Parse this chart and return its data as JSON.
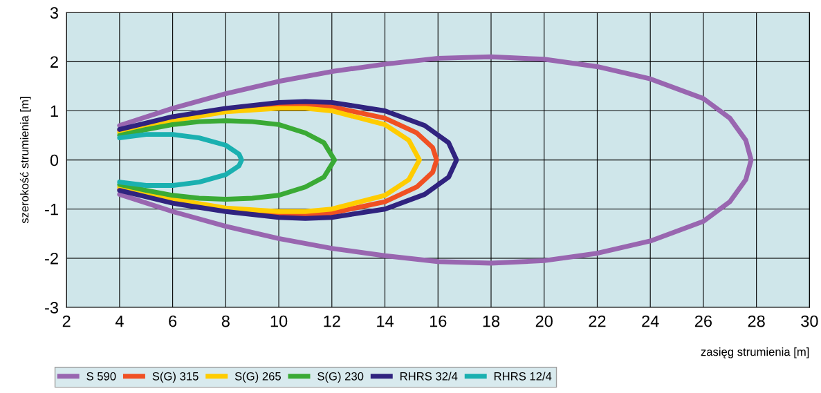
{
  "chart_data": {
    "type": "line",
    "xlabel": "zasięg strumienia [m]",
    "ylabel": "szerokość strumienia [m]",
    "xlim": [
      2,
      30
    ],
    "xticks": [
      2,
      4,
      6,
      8,
      10,
      12,
      14,
      16,
      18,
      20,
      22,
      24,
      26,
      28,
      30
    ],
    "ylim": [
      -3,
      3
    ],
    "yticks": [
      -3,
      -2,
      -1,
      0,
      1,
      2,
      3
    ],
    "grid": true,
    "legend": "bottom",
    "marker": "none",
    "line_style": "solid",
    "series": [
      {
        "name": "S 590",
        "color": "#9966b0",
        "x": [
          4,
          6,
          8,
          10,
          12,
          14,
          16,
          18,
          20,
          22,
          24,
          26,
          27,
          27.6,
          27.8,
          27.6,
          27,
          26,
          24,
          22,
          20,
          18,
          16,
          14,
          12,
          10,
          8,
          6,
          4
        ],
        "values": [
          0.7,
          1.05,
          1.35,
          1.6,
          1.8,
          1.95,
          2.07,
          2.1,
          2.05,
          1.9,
          1.65,
          1.25,
          0.85,
          0.4,
          0,
          -0.4,
          -0.85,
          -1.25,
          -1.65,
          -1.9,
          -2.05,
          -2.1,
          -2.07,
          -1.95,
          -1.8,
          -1.6,
          -1.35,
          -1.05,
          -0.7
        ]
      },
      {
        "name": "S(G) 315",
        "color": "#f05023",
        "x": [
          4,
          6,
          8,
          10,
          11,
          12,
          14,
          15.2,
          15.8,
          15.95,
          15.8,
          15.2,
          14,
          12,
          11,
          10,
          8,
          6,
          4
        ],
        "values": [
          0.6,
          0.85,
          1.0,
          1.1,
          1.11,
          1.08,
          0.85,
          0.55,
          0.25,
          0,
          -0.25,
          -0.55,
          -0.85,
          -1.08,
          -1.11,
          -1.1,
          -1.0,
          -0.85,
          -0.6
        ]
      },
      {
        "name": "S(G) 265",
        "color": "#ffcc00",
        "x": [
          4,
          6,
          8,
          10,
          11,
          12,
          14,
          14.9,
          15.3,
          14.9,
          14,
          12,
          11,
          10,
          8,
          6,
          4
        ],
        "values": [
          0.55,
          0.8,
          0.98,
          1.05,
          1.05,
          1.0,
          0.72,
          0.4,
          0,
          -0.4,
          -0.72,
          -1.0,
          -1.05,
          -1.05,
          -0.98,
          -0.8,
          -0.55
        ]
      },
      {
        "name": "S(G) 230",
        "color": "#3aaa35",
        "x": [
          4,
          5,
          6,
          7,
          8,
          9,
          10,
          11,
          11.7,
          12.1,
          11.7,
          11,
          10,
          9,
          8,
          7,
          6,
          5,
          4
        ],
        "values": [
          0.5,
          0.62,
          0.72,
          0.78,
          0.8,
          0.78,
          0.72,
          0.55,
          0.35,
          0,
          -0.35,
          -0.55,
          -0.72,
          -0.78,
          -0.8,
          -0.78,
          -0.72,
          -0.62,
          -0.5
        ]
      },
      {
        "name": "RHRS 32/4",
        "color": "#30237f",
        "x": [
          4,
          6,
          8,
          10,
          11,
          12,
          14,
          15.5,
          16.4,
          16.7,
          16.4,
          15.5,
          14,
          12,
          11,
          10,
          8,
          6,
          4
        ],
        "values": [
          0.62,
          0.88,
          1.05,
          1.17,
          1.19,
          1.17,
          1.0,
          0.7,
          0.35,
          0,
          -0.35,
          -0.7,
          -1.0,
          -1.17,
          -1.19,
          -1.17,
          -1.05,
          -0.88,
          -0.62
        ]
      },
      {
        "name": "RHRS 12/4",
        "color": "#1ab0b0",
        "x": [
          4,
          5,
          6,
          7,
          8,
          8.5,
          8.6,
          8.5,
          8,
          7,
          6,
          5,
          4
        ],
        "values": [
          0.45,
          0.52,
          0.52,
          0.45,
          0.3,
          0.12,
          0,
          -0.12,
          -0.3,
          -0.45,
          -0.52,
          -0.52,
          -0.45
        ]
      }
    ]
  }
}
